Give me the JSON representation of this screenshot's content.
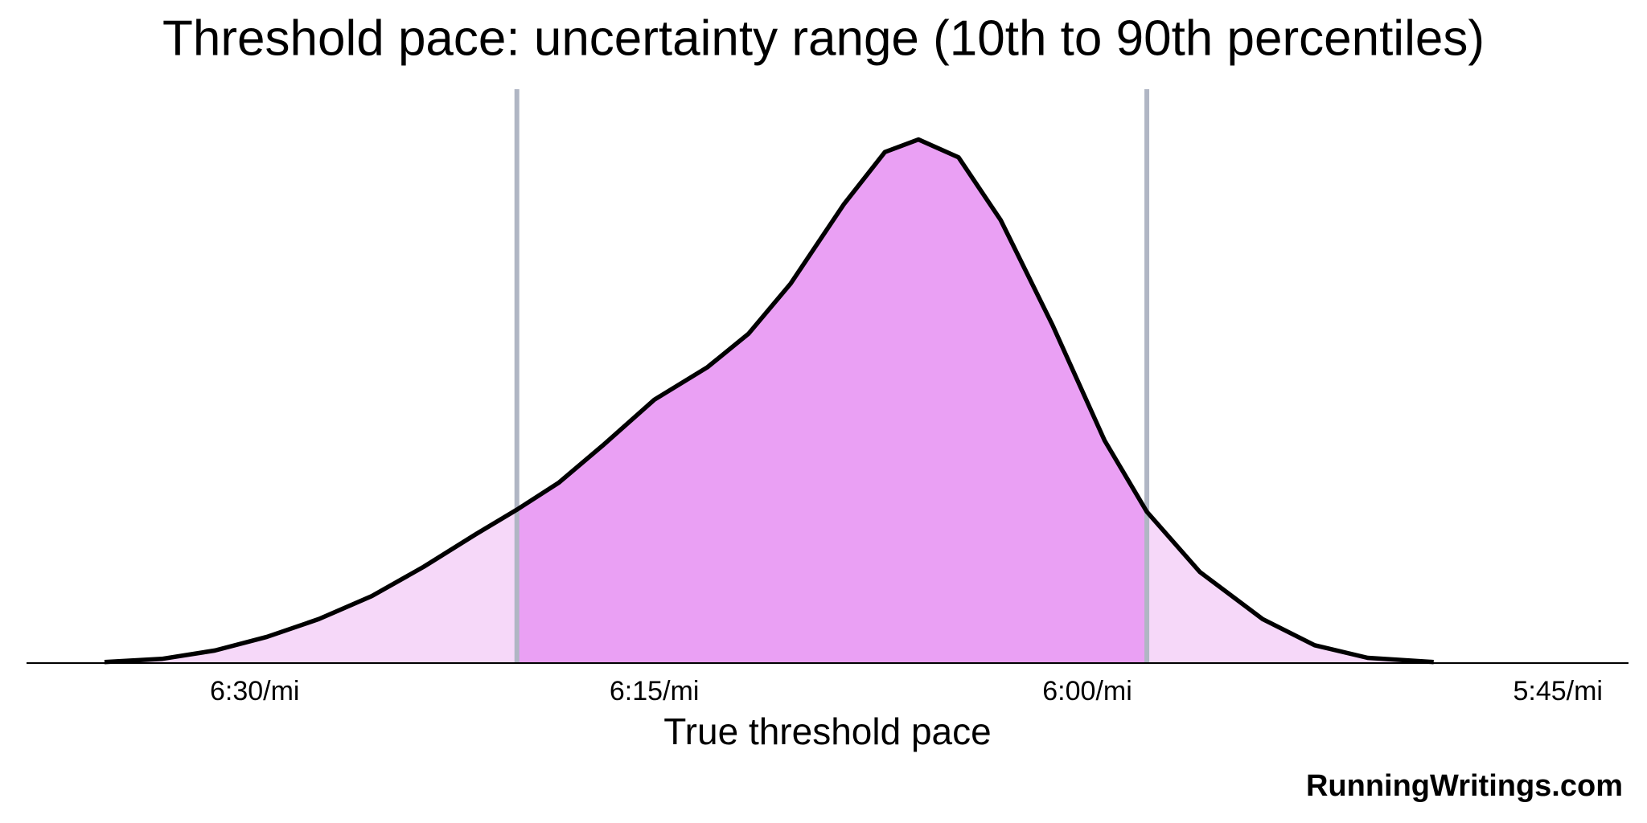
{
  "chart_data": {
    "type": "density",
    "title": "Threshold pace: uncertainty range (10th to 90th percentiles)",
    "x_label": "True threshold pace",
    "source": "RunningWritings.com",
    "x": [
      9.092,
      9.145,
      9.194,
      9.242,
      9.29,
      9.339,
      9.387,
      9.435,
      9.473,
      9.512,
      9.552,
      9.6,
      9.649,
      9.687,
      9.726,
      9.775,
      9.813,
      9.844,
      9.881,
      9.92,
      9.968,
      10.016,
      10.055,
      10.104,
      10.162,
      10.21,
      10.259,
      10.32
    ],
    "values": [
      0.002,
      0.008,
      0.024,
      0.05,
      0.084,
      0.128,
      0.184,
      0.246,
      0.293,
      0.345,
      0.415,
      0.503,
      0.565,
      0.629,
      0.725,
      0.876,
      0.976,
      1.0,
      0.966,
      0.846,
      0.645,
      0.425,
      0.289,
      0.174,
      0.084,
      0.034,
      0.01,
      0.002
    ],
    "interval": [
      9.473,
      10.055
    ],
    "xlim": [
      9.02,
      10.5
    ],
    "xticks": [
      {
        "value": 9.2308,
        "label": "6:30/mi"
      },
      {
        "value": 9.6,
        "label": "6:15/mi"
      },
      {
        "value": 10,
        "label": "6:00/mi"
      },
      {
        "value": 10.4348,
        "label": "5:45/mi"
      }
    ],
    "ylim": [
      0,
      1.05
    ],
    "color": "#000000",
    "interval_color": "#eaa0f4",
    "outer_color": "#f6d8f9",
    "line_color": "#b0b6c4"
  }
}
